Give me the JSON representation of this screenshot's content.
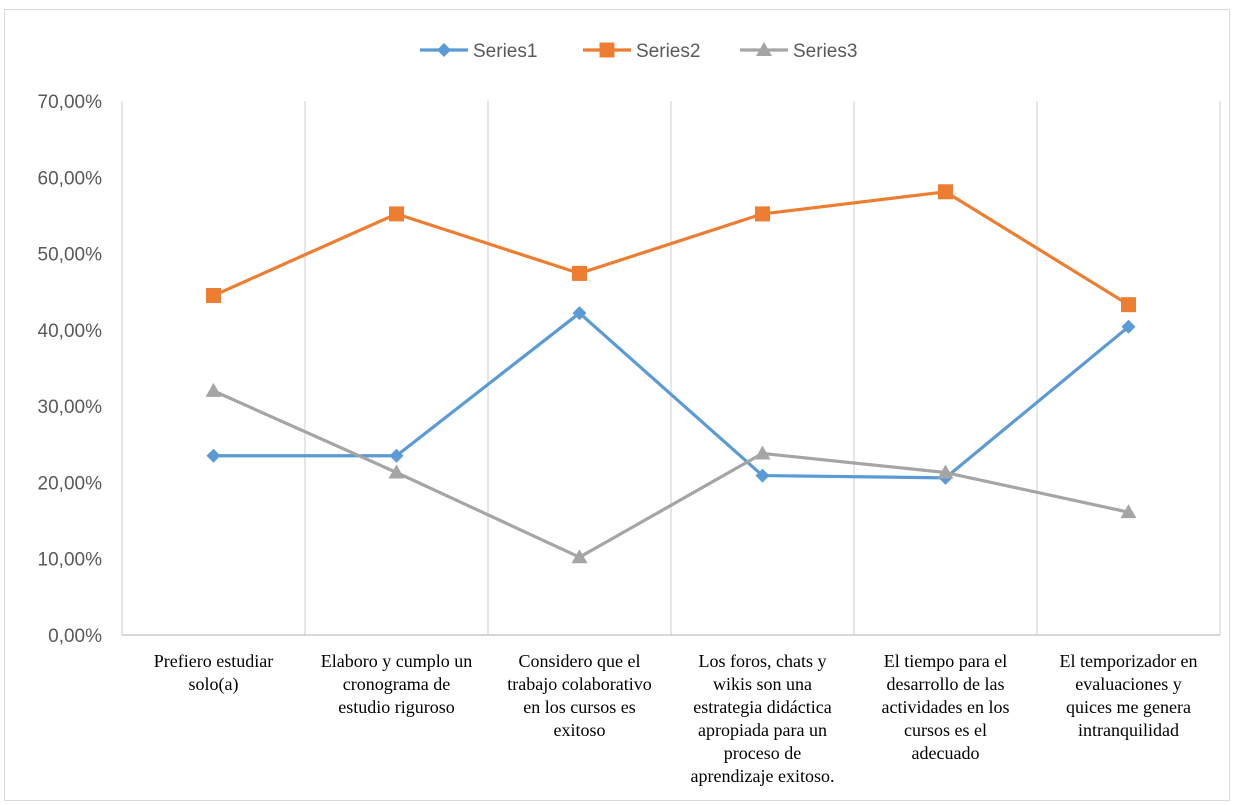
{
  "chart_data": {
    "type": "line",
    "categories": [
      [
        "Prefiero estudiar",
        "solo(a)"
      ],
      [
        "Elaboro y cumplo un",
        "cronograma de",
        "estudio riguroso"
      ],
      [
        "Considero que el",
        "trabajo colaborativo",
        "en los cursos es",
        "exitoso"
      ],
      [
        "Los foros, chats y",
        "wikis son una",
        "estrategia didáctica",
        "apropiada para un",
        "proceso de",
        "aprendizaje exitoso."
      ],
      [
        "El tiempo para el",
        "desarrollo de las",
        "actividades en los",
        "cursos es el",
        "adecuado"
      ],
      [
        "El temporizador en",
        "evaluaciones y",
        "quices me genera",
        "intranquilidad"
      ]
    ],
    "series": [
      {
        "name": "Series1",
        "color": "#5b9bd5",
        "marker": "diamond",
        "values": [
          0.235,
          0.235,
          0.422,
          0.209,
          0.206,
          0.404
        ]
      },
      {
        "name": "Series2",
        "color": "#ed7d31",
        "marker": "square",
        "values": [
          0.445,
          0.552,
          0.474,
          0.552,
          0.581,
          0.433
        ]
      },
      {
        "name": "Series3",
        "color": "#a5a5a5",
        "marker": "triangle",
        "values": [
          0.32,
          0.213,
          0.102,
          0.238,
          0.213,
          0.161
        ]
      }
    ],
    "y_ticks": [
      "0,00%",
      "10,00%",
      "20,00%",
      "30,00%",
      "40,00%",
      "50,00%",
      "60,00%",
      "70,00%"
    ],
    "ylim": [
      0,
      0.7
    ],
    "grid": "vertical",
    "legend": "top-center"
  }
}
